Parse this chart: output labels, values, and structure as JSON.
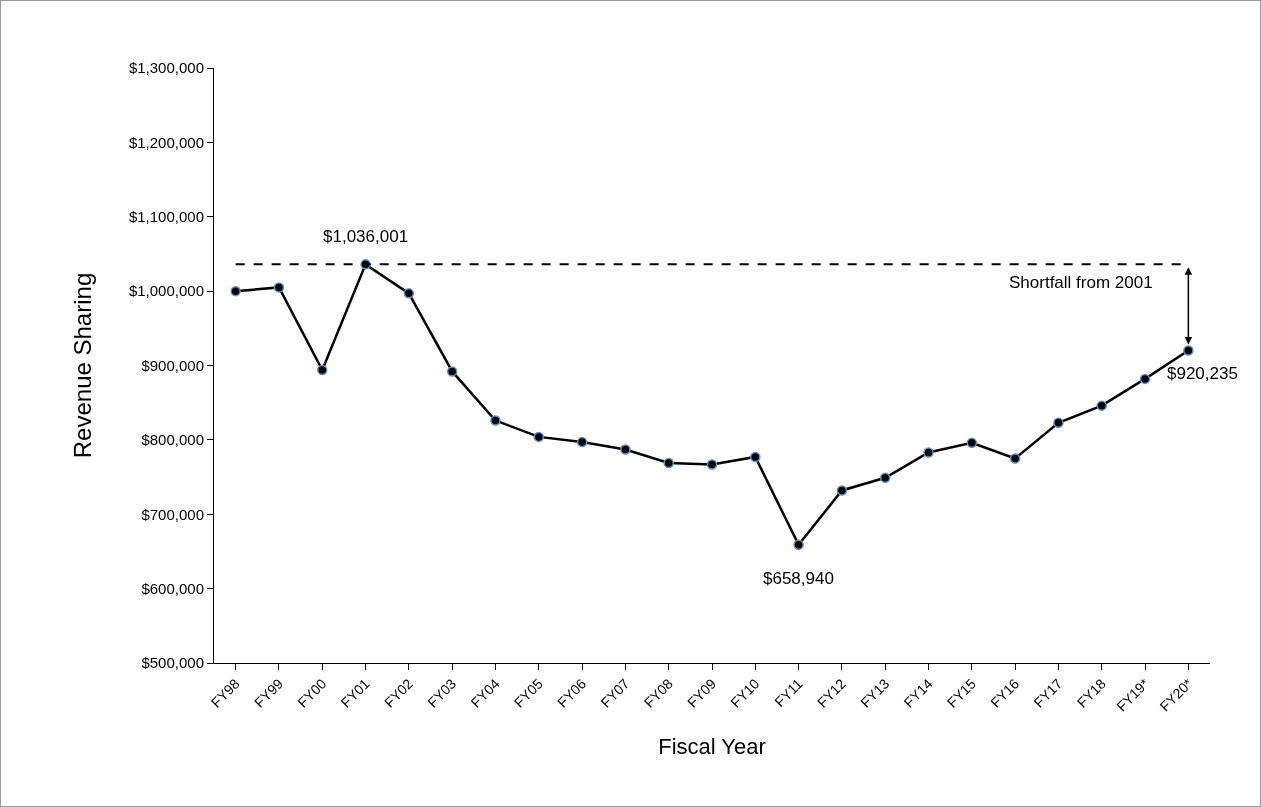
{
  "chart_data": {
    "type": "line",
    "xlabel": "Fiscal Year",
    "ylabel": "Revenue Sharing",
    "categories": [
      "FY98",
      "FY99",
      "FY00",
      "FY01",
      "FY02",
      "FY03",
      "FY04",
      "FY05",
      "FY06",
      "FY07",
      "FY08",
      "FY09",
      "FY10",
      "FY11",
      "FY12",
      "FY13",
      "FY14",
      "FY15",
      "FY16",
      "FY17",
      "FY18",
      "FY19*",
      "FY20*"
    ],
    "series": [
      {
        "color": "#000000",
        "values": [
          1000000,
          1005000,
          894000,
          1036001,
          997000,
          892000,
          826000,
          804000,
          797000,
          787000,
          769000,
          767000,
          777000,
          658940,
          732000,
          749000,
          783000,
          796000,
          775000,
          823000,
          846000,
          882000,
          920235
        ],
        "value_labels": [
          null,
          null,
          null,
          "$1,036,001",
          null,
          null,
          null,
          null,
          null,
          null,
          null,
          null,
          null,
          "$658,940",
          null,
          null,
          null,
          null,
          null,
          null,
          null,
          null,
          "$920,235"
        ]
      }
    ],
    "ylim": [
      500000,
      1300000
    ],
    "yticks": [
      {
        "value": 500000,
        "label": "$500,000"
      },
      {
        "value": 600000,
        "label": "$600,000"
      },
      {
        "value": 700000,
        "label": "$700,000"
      },
      {
        "value": 800000,
        "label": "$800,000"
      },
      {
        "value": 900000,
        "label": "$900,000"
      },
      {
        "value": 1000000,
        "label": "$1,000,000"
      },
      {
        "value": 1100000,
        "label": "$1,100,000"
      },
      {
        "value": 1200000,
        "label": "$1,200,000"
      },
      {
        "value": 1300000,
        "label": "$1,300,000"
      }
    ],
    "ref_lines": [
      {
        "axis": "y",
        "value": 1036001,
        "color": "#000000",
        "line_style": "dashed"
      }
    ],
    "annotations": [
      "Shortfall from 2001"
    ],
    "marker": "circle",
    "line_style": "solid",
    "grid": false
  }
}
